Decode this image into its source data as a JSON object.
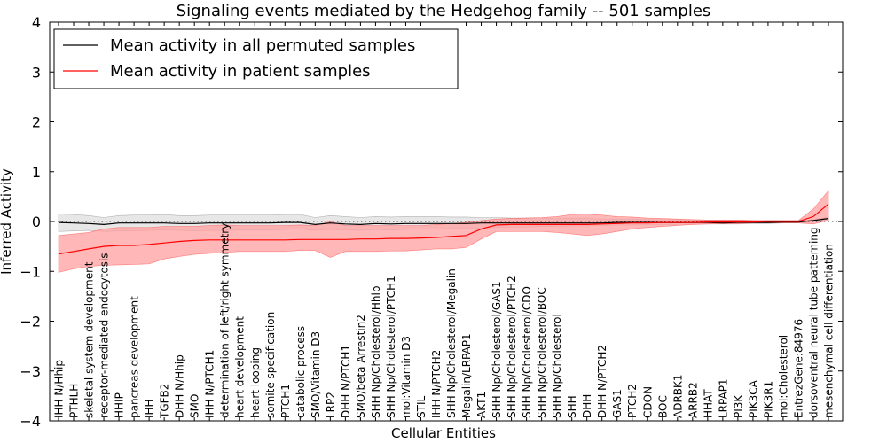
{
  "chart_data": {
    "type": "line",
    "title": "Signaling events mediated by the Hedgehog family -- 501 samples",
    "xlabel": "Cellular Entities",
    "ylabel": "Inferred Activity",
    "ylim": [
      -4,
      4
    ],
    "yticks": [
      -4,
      -3,
      -2,
      -1,
      0,
      1,
      2,
      3,
      4
    ],
    "ytick_labels": [
      "−4",
      "−3",
      "−2",
      "−1",
      "0",
      "1",
      "2",
      "3",
      "4"
    ],
    "grid": false,
    "legend_position": "top-left",
    "categories": [
      "IHH N/Hhip",
      "PTHLH",
      "skeletal system development",
      "receptor-mediated endocytosis",
      "HHIP",
      "pancreas development",
      "IHH",
      "TGFB2",
      "DHH N/Hhip",
      "SMO",
      "IHH N/PTCH1",
      "determination of left/right symmetry",
      "heart development",
      "heart looping",
      "somite specification",
      "PTCH1",
      "catabolic process",
      "SMO/Vitamin D3",
      "LRP2",
      "DHH N/PTCH1",
      "SMO/beta Arrestin2",
      "SHH Np/Cholesterol/Hhip",
      "SHH Np/Cholesterol/PTCH1",
      "mol:Vitamin D3",
      "STIL",
      "IHH N/PTCH2",
      "SHH Np/Cholesterol/Megalin",
      "Megalin/LRPAP1",
      "AKT1",
      "SHH Np/Cholesterol/GAS1",
      "SHH Np/Cholesterol/PTCH2",
      "SHH Np/Cholesterol/CDO",
      "SHH Np/Cholesterol/BOC",
      "SHH Np/Cholesterol",
      "SHH",
      "DHH",
      "DHH N/PTCH2",
      "GAS1",
      "PTCH2",
      "CDON",
      "BOC",
      "ADRBK1",
      "ARRB2",
      "HHAT",
      "LRPAP1",
      "PI3K",
      "PIK3CA",
      "PIK3R1",
      "mol:Cholesterol",
      "EntrezGene:84976",
      "dorsoventral neural tube patterning",
      "mesenchymal cell differentiation"
    ],
    "series": [
      {
        "name": "Mean activity in all permuted samples",
        "color": "#000000",
        "band_color": "#bbbbbb",
        "values": [
          -0.02,
          -0.03,
          -0.04,
          -0.06,
          -0.03,
          -0.03,
          -0.03,
          -0.03,
          -0.04,
          -0.04,
          -0.03,
          -0.03,
          -0.03,
          -0.03,
          -0.03,
          -0.02,
          -0.02,
          -0.06,
          -0.03,
          -0.05,
          -0.06,
          -0.04,
          -0.05,
          -0.04,
          -0.04,
          -0.04,
          -0.04,
          -0.04,
          -0.03,
          -0.03,
          -0.03,
          -0.03,
          -0.03,
          -0.03,
          -0.03,
          -0.03,
          -0.03,
          -0.02,
          -0.02,
          -0.02,
          -0.02,
          -0.02,
          -0.02,
          -0.02,
          -0.03,
          -0.02,
          -0.02,
          -0.02,
          -0.01,
          -0.01,
          0.02,
          0.06
        ],
        "band_low": [
          -0.2,
          -0.19,
          -0.18,
          -0.2,
          -0.19,
          -0.19,
          -0.18,
          -0.17,
          -0.18,
          -0.19,
          -0.18,
          -0.18,
          -0.17,
          -0.17,
          -0.17,
          -0.16,
          -0.15,
          -0.18,
          -0.16,
          -0.17,
          -0.18,
          -0.16,
          -0.17,
          -0.16,
          -0.15,
          -0.15,
          -0.14,
          -0.14,
          -0.13,
          -0.12,
          -0.11,
          -0.11,
          -0.1,
          -0.1,
          -0.09,
          -0.09,
          -0.08,
          -0.07,
          -0.07,
          -0.06,
          -0.06,
          -0.06,
          -0.05,
          -0.05,
          -0.05,
          -0.05,
          -0.04,
          -0.04,
          -0.03,
          -0.03,
          -0.01,
          0.02
        ],
        "band_high": [
          0.15,
          0.14,
          0.12,
          0.08,
          0.12,
          0.13,
          0.13,
          0.14,
          0.12,
          0.12,
          0.13,
          0.13,
          0.13,
          0.13,
          0.13,
          0.14,
          0.14,
          0.08,
          0.12,
          0.1,
          0.08,
          0.1,
          0.09,
          0.1,
          0.1,
          0.1,
          0.09,
          0.09,
          0.08,
          0.08,
          0.07,
          0.07,
          0.07,
          0.06,
          0.06,
          0.06,
          0.05,
          0.05,
          0.05,
          0.04,
          0.04,
          0.04,
          0.03,
          0.03,
          0.03,
          0.03,
          0.02,
          0.02,
          0.02,
          0.02,
          0.04,
          0.09
        ]
      },
      {
        "name": "Mean activity in patient samples",
        "color": "#ff0000",
        "band_color": "#ff9f9f",
        "values": [
          -0.65,
          -0.6,
          -0.55,
          -0.5,
          -0.48,
          -0.48,
          -0.46,
          -0.43,
          -0.4,
          -0.38,
          -0.37,
          -0.37,
          -0.37,
          -0.37,
          -0.37,
          -0.37,
          -0.36,
          -0.36,
          -0.36,
          -0.36,
          -0.35,
          -0.35,
          -0.34,
          -0.34,
          -0.33,
          -0.32,
          -0.3,
          -0.28,
          -0.15,
          -0.07,
          -0.06,
          -0.06,
          -0.06,
          -0.06,
          -0.06,
          -0.06,
          -0.05,
          -0.04,
          -0.03,
          -0.03,
          -0.02,
          -0.02,
          -0.02,
          -0.01,
          -0.01,
          -0.01,
          -0.01,
          0.0,
          0.0,
          0.0,
          0.1,
          0.35
        ],
        "band_low": [
          -1.02,
          -0.95,
          -0.9,
          -0.88,
          -0.87,
          -0.86,
          -0.85,
          -0.75,
          -0.7,
          -0.66,
          -0.64,
          -0.62,
          -0.6,
          -0.6,
          -0.6,
          -0.6,
          -0.58,
          -0.58,
          -0.72,
          -0.6,
          -0.6,
          -0.6,
          -0.59,
          -0.59,
          -0.57,
          -0.55,
          -0.55,
          -0.52,
          -0.35,
          -0.2,
          -0.2,
          -0.2,
          -0.2,
          -0.22,
          -0.25,
          -0.28,
          -0.25,
          -0.2,
          -0.15,
          -0.12,
          -0.1,
          -0.08,
          -0.06,
          -0.05,
          -0.04,
          -0.04,
          -0.03,
          -0.03,
          -0.03,
          -0.03,
          -0.05,
          0.02
        ],
        "band_high": [
          -0.28,
          -0.25,
          -0.22,
          -0.15,
          -0.12,
          -0.12,
          -0.12,
          -0.1,
          -0.1,
          -0.1,
          -0.08,
          -0.07,
          -0.08,
          -0.08,
          -0.08,
          -0.08,
          -0.07,
          -0.08,
          0.0,
          -0.08,
          -0.08,
          -0.08,
          -0.08,
          -0.08,
          -0.08,
          -0.06,
          -0.04,
          -0.02,
          0.02,
          0.05,
          0.06,
          0.07,
          0.08,
          0.1,
          0.14,
          0.15,
          0.13,
          0.1,
          0.09,
          0.07,
          0.06,
          0.05,
          0.04,
          0.03,
          0.03,
          0.03,
          0.02,
          0.02,
          0.02,
          0.02,
          0.25,
          0.62
        ]
      }
    ],
    "reference_line": {
      "y": 0,
      "style": "dotted"
    }
  }
}
